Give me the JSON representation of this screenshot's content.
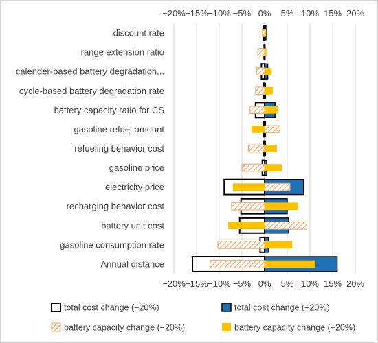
{
  "chart_data": {
    "type": "bar",
    "orientation": "horizontal",
    "categories": [
      "discount rate",
      "range extension ratio",
      "calender-based battery degradation...",
      "cycle-based battery degradation rate",
      "battery capacity ratio for CS",
      "gasoline refuel amount",
      "refueling behavior cost",
      "gasoline price",
      "electricity price",
      "recharging behavior cost",
      "battery unit cost",
      "gasoline consumption rate",
      "Annual distance"
    ],
    "series": [
      {
        "name": "total cost change (−20%)",
        "values": [
          -0.3,
          -0.1,
          -0.7,
          -0.2,
          -2.0,
          -0.2,
          -0.2,
          -0.5,
          -8.9,
          -5.2,
          -5.5,
          -1.0,
          -15.9
        ],
        "style": "outline",
        "color": "#000000"
      },
      {
        "name": "total cost change (+20%)",
        "values": [
          0.3,
          0.1,
          0.7,
          0.2,
          2.3,
          0.2,
          0.2,
          0.5,
          8.6,
          5.0,
          5.3,
          0.9,
          16.0
        ],
        "style": "solid-outline",
        "color": "#1f6fb4"
      },
      {
        "name": "battery capacity change (−20%)",
        "values": [
          -0.5,
          -1.5,
          -1.7,
          -2.0,
          -3.2,
          3.4,
          -3.6,
          -5.0,
          5.6,
          -7.3,
          9.3,
          -10.3,
          -12.0
        ],
        "style": "hatched",
        "color": "#f4a460"
      },
      {
        "name": "battery capacity change (+20%)",
        "values": [
          0.3,
          0.4,
          1.5,
          1.8,
          2.9,
          -2.9,
          2.7,
          3.8,
          -7.0,
          7.4,
          -8.0,
          6.1,
          11.2
        ],
        "style": "solid",
        "color": "#ffc000"
      }
    ],
    "xlim": [
      -20,
      20
    ],
    "ticks": [
      "−20%",
      "−15%",
      "−10%",
      "−5%",
      "0%",
      "5%",
      "10%",
      "15%",
      "20%"
    ],
    "grid": true,
    "legend_position": "bottom",
    "title": "",
    "xlabel": "",
    "ylabel": ""
  }
}
